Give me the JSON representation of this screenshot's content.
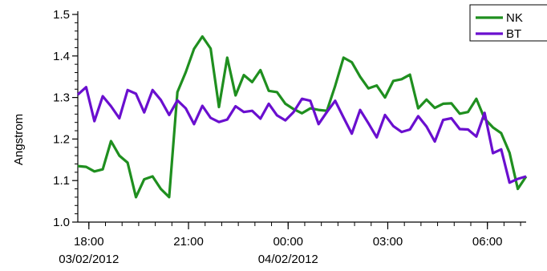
{
  "chart_data": {
    "type": "line",
    "title": "",
    "xlabel": "",
    "ylabel": "Angstrom",
    "ylim": [
      1.0,
      1.5
    ],
    "xlim": [
      "2012-02-03 17:40",
      "2012-02-04 07:10"
    ],
    "yticks": [
      1.0,
      1.1,
      1.2,
      1.3,
      1.4,
      1.5
    ],
    "yticks_labels": [
      "1.0",
      "1.1",
      "1.2",
      "1.3",
      "1.4",
      "1.5"
    ],
    "xticks": [
      {
        "time": "2012-02-03 18:00",
        "label": "18:00",
        "date": "03/02/2012"
      },
      {
        "time": "2012-02-03 21:00",
        "label": "21:00",
        "date": ""
      },
      {
        "time": "2012-02-04 00:00",
        "label": "00:00",
        "date": "04/02/2012"
      },
      {
        "time": "2012-02-04 03:00",
        "label": "03:00",
        "date": ""
      },
      {
        "time": "2012-02-04 06:00",
        "label": "06:00",
        "date": ""
      }
    ],
    "legend": {
      "position": "top-right"
    },
    "grid": false,
    "series": [
      {
        "name": "NK",
        "color": "#1f8f1f",
        "x": [
          "2012-02-03 17:40",
          "2012-02-03 17:55",
          "2012-02-03 18:10",
          "2012-02-03 18:25",
          "2012-02-03 18:40",
          "2012-02-03 18:55",
          "2012-02-03 19:10",
          "2012-02-03 19:25",
          "2012-02-03 19:40",
          "2012-02-03 19:55",
          "2012-02-03 20:10",
          "2012-02-03 20:25",
          "2012-02-03 20:40",
          "2012-02-03 20:55",
          "2012-02-03 21:10",
          "2012-02-03 21:25",
          "2012-02-03 21:40",
          "2012-02-03 21:55",
          "2012-02-03 22:10",
          "2012-02-03 22:25",
          "2012-02-03 22:40",
          "2012-02-03 22:55",
          "2012-02-03 23:10",
          "2012-02-03 23:25",
          "2012-02-03 23:40",
          "2012-02-03 23:55",
          "2012-02-04 00:10",
          "2012-02-04 00:25",
          "2012-02-04 00:40",
          "2012-02-04 00:55",
          "2012-02-04 01:10",
          "2012-02-04 01:25",
          "2012-02-04 01:40",
          "2012-02-04 01:55",
          "2012-02-04 02:10",
          "2012-02-04 02:25",
          "2012-02-04 02:40",
          "2012-02-04 02:55",
          "2012-02-04 03:10",
          "2012-02-04 03:25",
          "2012-02-04 03:40",
          "2012-02-04 03:55",
          "2012-02-04 04:10",
          "2012-02-04 04:25",
          "2012-02-04 04:40",
          "2012-02-04 04:55",
          "2012-02-04 05:10",
          "2012-02-04 05:25",
          "2012-02-04 05:40",
          "2012-02-04 05:55",
          "2012-02-04 06:10",
          "2012-02-04 06:25",
          "2012-02-04 06:40",
          "2012-02-04 06:55",
          "2012-02-04 07:10"
        ],
        "y": [
          1.135,
          1.133,
          1.122,
          1.127,
          1.195,
          1.16,
          1.143,
          1.06,
          1.103,
          1.11,
          1.08,
          1.06,
          1.313,
          1.361,
          1.417,
          1.447,
          1.418,
          1.277,
          1.396,
          1.305,
          1.354,
          1.337,
          1.366,
          1.316,
          1.313,
          1.285,
          1.272,
          1.262,
          1.274,
          1.27,
          1.268,
          1.328,
          1.396,
          1.385,
          1.35,
          1.322,
          1.329,
          1.3,
          1.34,
          1.344,
          1.355,
          1.274,
          1.295,
          1.275,
          1.285,
          1.286,
          1.261,
          1.265,
          1.297,
          1.249,
          1.228,
          1.214,
          1.167,
          1.08,
          1.11
        ]
      },
      {
        "name": "BT",
        "color": "#6a0fcf",
        "x": [
          "2012-02-03 17:40",
          "2012-02-03 17:55",
          "2012-02-03 18:10",
          "2012-02-03 18:25",
          "2012-02-03 18:40",
          "2012-02-03 18:55",
          "2012-02-03 19:10",
          "2012-02-03 19:25",
          "2012-02-03 19:40",
          "2012-02-03 19:55",
          "2012-02-03 20:10",
          "2012-02-03 20:25",
          "2012-02-03 20:40",
          "2012-02-03 20:55",
          "2012-02-03 21:10",
          "2012-02-03 21:25",
          "2012-02-03 21:40",
          "2012-02-03 21:55",
          "2012-02-03 22:10",
          "2012-02-03 22:25",
          "2012-02-03 22:40",
          "2012-02-03 22:55",
          "2012-02-03 23:10",
          "2012-02-03 23:25",
          "2012-02-03 23:40",
          "2012-02-03 23:55",
          "2012-02-04 00:10",
          "2012-02-04 00:25",
          "2012-02-04 00:40",
          "2012-02-04 00:55",
          "2012-02-04 01:10",
          "2012-02-04 01:25",
          "2012-02-04 01:40",
          "2012-02-04 01:55",
          "2012-02-04 02:10",
          "2012-02-04 02:25",
          "2012-02-04 02:40",
          "2012-02-04 02:55",
          "2012-02-04 03:10",
          "2012-02-04 03:25",
          "2012-02-04 03:40",
          "2012-02-04 03:55",
          "2012-02-04 04:10",
          "2012-02-04 04:25",
          "2012-02-04 04:40",
          "2012-02-04 04:55",
          "2012-02-04 05:10",
          "2012-02-04 05:25",
          "2012-02-04 05:40",
          "2012-02-04 05:55",
          "2012-02-04 06:10",
          "2012-02-04 06:25",
          "2012-02-04 06:40",
          "2012-02-04 06:55",
          "2012-02-04 07:10"
        ],
        "y": [
          1.307,
          1.325,
          1.243,
          1.303,
          1.279,
          1.25,
          1.318,
          1.309,
          1.264,
          1.318,
          1.294,
          1.258,
          1.293,
          1.274,
          1.236,
          1.28,
          1.251,
          1.241,
          1.247,
          1.279,
          1.265,
          1.268,
          1.249,
          1.285,
          1.257,
          1.245,
          1.265,
          1.297,
          1.292,
          1.236,
          1.265,
          1.292,
          1.252,
          1.213,
          1.27,
          1.238,
          1.204,
          1.258,
          1.231,
          1.217,
          1.223,
          1.255,
          1.23,
          1.194,
          1.246,
          1.25,
          1.224,
          1.223,
          1.206,
          1.263,
          1.166,
          1.175,
          1.095,
          1.104,
          1.11
        ]
      }
    ]
  }
}
